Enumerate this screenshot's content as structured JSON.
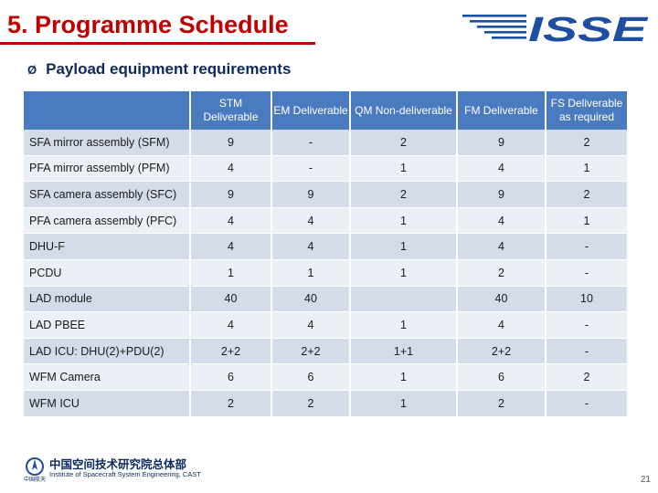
{
  "slide": {
    "title": "5. Programme Schedule",
    "subtitle": "Payload equipment requirements",
    "bullet": "Ø",
    "page_number": "21",
    "logo_text": "ISSE",
    "footer_cn": "中国空间技术研究院总体部",
    "footer_en": "Institute of Spacecraft System Engineering, CAST",
    "footer_cn_small": "中国航天"
  },
  "table": {
    "headers": [
      "",
      "STM Deliverable",
      "EM Deliverable",
      "QM Non-deliverable",
      "FM Deliverable",
      "FS Deliverable as required"
    ],
    "rows": [
      {
        "label": "SFA mirror assembly (SFM)",
        "values": [
          "9",
          "-",
          "2",
          "9",
          "2"
        ]
      },
      {
        "label": "PFA mirror assembly (PFM)",
        "values": [
          "4",
          "-",
          "1",
          "4",
          "1"
        ]
      },
      {
        "label": "SFA camera assembly (SFC)",
        "values": [
          "9",
          "9",
          "2",
          "9",
          "2"
        ]
      },
      {
        "label": "PFA camera assembly (PFC)",
        "values": [
          "4",
          "4",
          "1",
          "4",
          "1"
        ]
      },
      {
        "label": "DHU-F",
        "values": [
          "4",
          "4",
          "1",
          "4",
          "-"
        ]
      },
      {
        "label": "PCDU",
        "values": [
          "1",
          "1",
          "1",
          "2",
          "-"
        ]
      },
      {
        "label": "LAD module",
        "values": [
          "40",
          "40",
          "",
          "40",
          "10"
        ]
      },
      {
        "label": "LAD PBEE",
        "values": [
          "4",
          "4",
          "1",
          "4",
          "-"
        ]
      },
      {
        "label": "LAD ICU: DHU(2)+PDU(2)",
        "values": [
          "2+2",
          "2+2",
          "1+1",
          "2+2",
          "-"
        ]
      },
      {
        "label": "WFM Camera",
        "values": [
          "6",
          "6",
          "1",
          "6",
          "2"
        ]
      },
      {
        "label": "WFM ICU",
        "values": [
          "2",
          "2",
          "1",
          "2",
          "-"
        ]
      }
    ]
  },
  "colors": {
    "title": "#c00000",
    "subtitle": "#0d2a5a",
    "header_bg": "#4a7bbf",
    "row_odd": "#d4dcea",
    "row_even": "#ebeff6",
    "logo": "#1d4fa0"
  }
}
